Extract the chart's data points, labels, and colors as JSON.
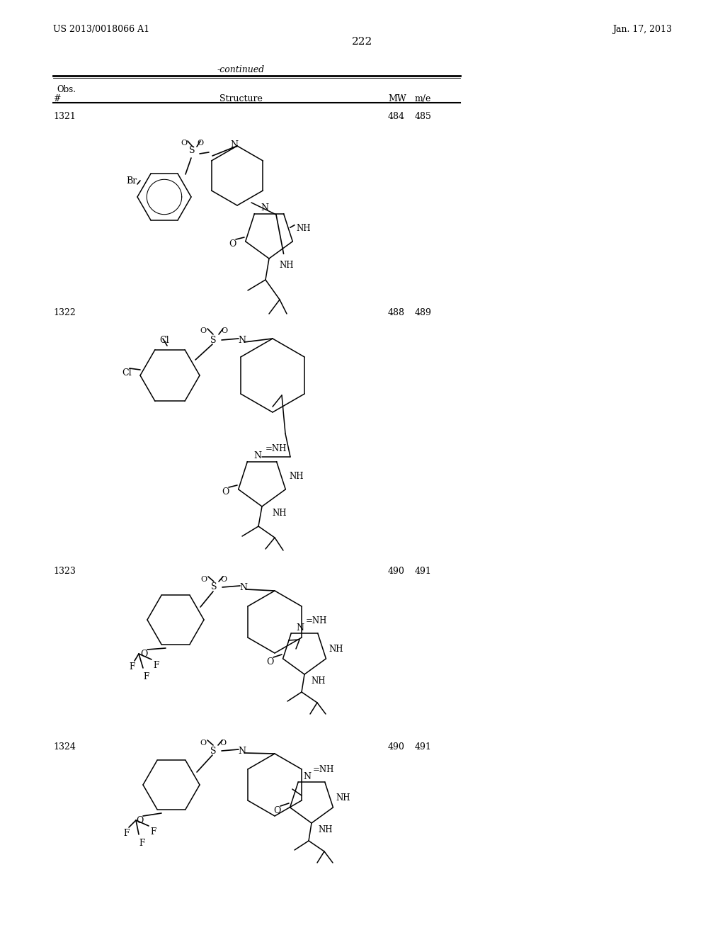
{
  "page_header_left": "US 2013/0018066 A1",
  "page_header_right": "Jan. 17, 2013",
  "page_number": "222",
  "table_label": "-continued",
  "background_color": "#ffffff",
  "text_color": "#000000",
  "rows": [
    {
      "num": "1321",
      "mw": "484",
      "obs": "485"
    },
    {
      "num": "1322",
      "mw": "488",
      "obs": "489"
    },
    {
      "num": "1323",
      "mw": "490",
      "obs": "491"
    },
    {
      "num": "1324",
      "mw": "490",
      "obs": "491"
    }
  ]
}
